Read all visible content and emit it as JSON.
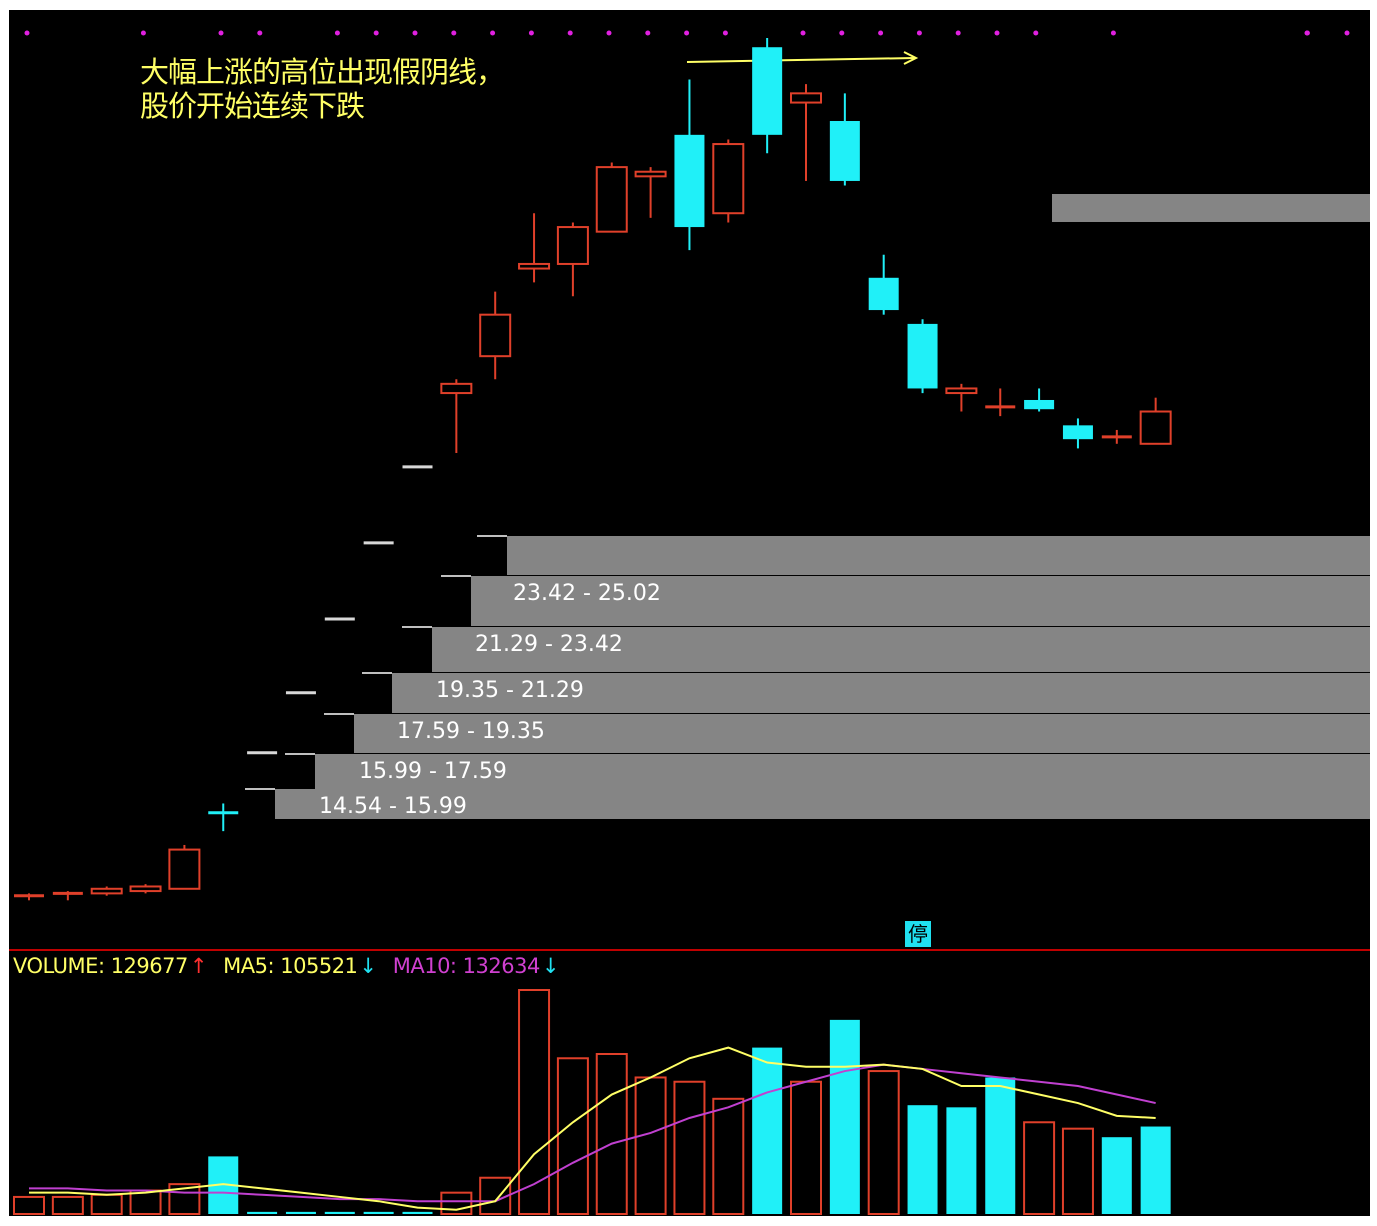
{
  "annotation": {
    "line1": "大幅上涨的高位出现假阴线，",
    "line2": "股价开始连续下跌"
  },
  "stop_badge": "停",
  "volume_legend": {
    "volume_label": "VOLUME: 129677",
    "volume_arrow": "↑",
    "ma5_label": "MA5: 105521",
    "ma5_arrow": "↓",
    "ma10_label": "MA10: 132634",
    "ma10_arrow": "↓"
  },
  "colors": {
    "background": "#000000",
    "up_candle": "#e0402a",
    "down_candle": "#20f0f8",
    "ma5_line": "#ffff66",
    "ma10_line": "#c040d0",
    "price_band": "#858585",
    "annotation_text": "#ffff66",
    "marker_dots": "#e020e0",
    "panel_divider": "#c00000"
  },
  "chart_data": {
    "type": "candlestick",
    "price_ranges": [
      "14.54 - 15.99",
      "15.99 - 17.59",
      "17.59 - 19.35",
      "19.35 - 21.29",
      "21.29 - 23.42",
      "23.42 - 25.02"
    ],
    "candles": [
      {
        "open": 11.2,
        "high": 11.25,
        "low": 11.1,
        "close": 11.15,
        "dir": "up"
      },
      {
        "open": 11.2,
        "high": 11.3,
        "low": 11.1,
        "close": 11.25,
        "dir": "up"
      },
      {
        "open": 11.25,
        "high": 11.4,
        "low": 11.2,
        "close": 11.35,
        "dir": "up"
      },
      {
        "open": 11.3,
        "high": 11.45,
        "low": 11.25,
        "close": 11.4,
        "dir": "up"
      },
      {
        "open": 11.35,
        "high": 12.3,
        "low": 11.35,
        "close": 12.2,
        "dir": "up"
      },
      {
        "open": 13.0,
        "high": 13.2,
        "low": 12.6,
        "close": 13.0,
        "dir": "down"
      },
      {
        "open": 14.3,
        "high": 14.3,
        "low": 14.3,
        "close": 14.3,
        "dir": "down"
      },
      {
        "open": 15.6,
        "high": 15.6,
        "low": 15.6,
        "close": 15.6,
        "dir": "down"
      },
      {
        "open": 17.2,
        "high": 17.2,
        "low": 17.2,
        "close": 17.2,
        "dir": "down"
      },
      {
        "open": 18.85,
        "high": 18.85,
        "low": 18.85,
        "close": 18.85,
        "dir": "down"
      },
      {
        "open": 20.5,
        "high": 20.5,
        "low": 20.5,
        "close": 20.5,
        "dir": "down"
      },
      {
        "open": 22.1,
        "high": 22.4,
        "low": 20.8,
        "close": 22.3,
        "dir": "up"
      },
      {
        "open": 22.9,
        "high": 24.3,
        "low": 22.4,
        "close": 23.8,
        "dir": "up"
      },
      {
        "open": 24.8,
        "high": 26.0,
        "low": 24.5,
        "close": 24.9,
        "dir": "up"
      },
      {
        "open": 24.9,
        "high": 25.8,
        "low": 24.2,
        "close": 25.7,
        "dir": "up"
      },
      {
        "open": 25.6,
        "high": 27.1,
        "low": 25.6,
        "close": 27.0,
        "dir": "up"
      },
      {
        "open": 26.8,
        "high": 27.0,
        "low": 25.9,
        "close": 26.9,
        "dir": "up"
      },
      {
        "open": 27.7,
        "high": 28.9,
        "low": 25.2,
        "close": 25.7,
        "dir": "down"
      },
      {
        "open": 26.0,
        "high": 27.6,
        "low": 25.8,
        "close": 27.5,
        "dir": "up"
      },
      {
        "open": 29.6,
        "high": 29.8,
        "low": 27.3,
        "close": 27.7,
        "dir": "down"
      },
      {
        "open": 28.4,
        "high": 28.8,
        "low": 26.7,
        "close": 28.6,
        "dir": "up"
      },
      {
        "open": 28.0,
        "high": 28.6,
        "low": 26.6,
        "close": 26.7,
        "dir": "down"
      },
      {
        "open": 24.6,
        "high": 25.1,
        "low": 23.8,
        "close": 23.9,
        "dir": "down"
      },
      {
        "open": 23.6,
        "high": 23.7,
        "low": 22.1,
        "close": 22.2,
        "dir": "down"
      },
      {
        "open": 22.1,
        "high": 22.3,
        "low": 21.7,
        "close": 22.2,
        "dir": "up"
      },
      {
        "open": 21.8,
        "high": 22.2,
        "low": 21.6,
        "close": 21.8,
        "dir": "up"
      },
      {
        "open": 21.95,
        "high": 22.2,
        "low": 21.7,
        "close": 21.75,
        "dir": "down"
      },
      {
        "open": 21.4,
        "high": 21.55,
        "low": 20.9,
        "close": 21.1,
        "dir": "down"
      },
      {
        "open": 21.1,
        "high": 21.3,
        "low": 21.0,
        "close": 21.15,
        "dir": "up"
      },
      {
        "open": 21.0,
        "high": 22.0,
        "low": 21.0,
        "close": 21.7,
        "dir": "up"
      }
    ],
    "volume": [
      8,
      8,
      9,
      11,
      14,
      27,
      1,
      1,
      1,
      1,
      1,
      10,
      17,
      105,
      73,
      75,
      64,
      62,
      54,
      78,
      62,
      91,
      67,
      51,
      50,
      64,
      43,
      40,
      36,
      41
    ],
    "volume_dir": [
      "up",
      "up",
      "up",
      "up",
      "up",
      "down",
      "down",
      "down",
      "down",
      "down",
      "down",
      "up",
      "up",
      "up",
      "up",
      "up",
      "up",
      "up",
      "up",
      "down",
      "up",
      "down",
      "up",
      "down",
      "down",
      "down",
      "up",
      "up",
      "down",
      "down"
    ],
    "ma5": [
      10,
      10,
      9,
      10,
      12,
      14,
      12,
      10,
      8,
      6,
      3,
      2,
      6,
      28,
      43,
      56,
      64,
      73,
      78,
      71,
      69,
      69,
      70,
      68,
      60,
      60,
      56,
      52,
      46,
      45
    ],
    "ma10": [
      12,
      12,
      11,
      11,
      10,
      10,
      9,
      8,
      7,
      7,
      6,
      6,
      6,
      14,
      24,
      33,
      38,
      45,
      50,
      57,
      62,
      67,
      70,
      68,
      66,
      64,
      62,
      60,
      56,
      52
    ]
  }
}
